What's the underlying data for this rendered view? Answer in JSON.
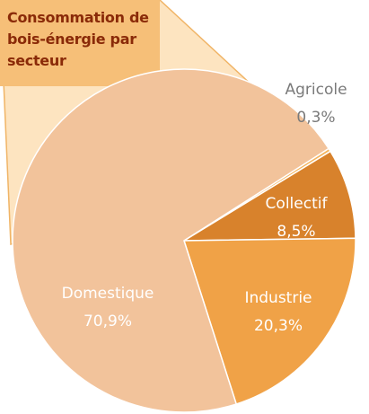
{
  "chart_data": {
    "type": "pie",
    "title": "Consommation de bois-énergie par secteur",
    "categories": [
      "Agricole",
      "Collectif",
      "Industrie",
      "Domestique"
    ],
    "values": [
      0.3,
      8.5,
      20.3,
      70.9
    ],
    "value_labels": [
      "0,3%",
      "8,5%",
      "20,3%",
      "70,9%"
    ],
    "colors": [
      "#f4b45e",
      "#d8822c",
      "#f0a247",
      "#f2c39b"
    ]
  }
}
